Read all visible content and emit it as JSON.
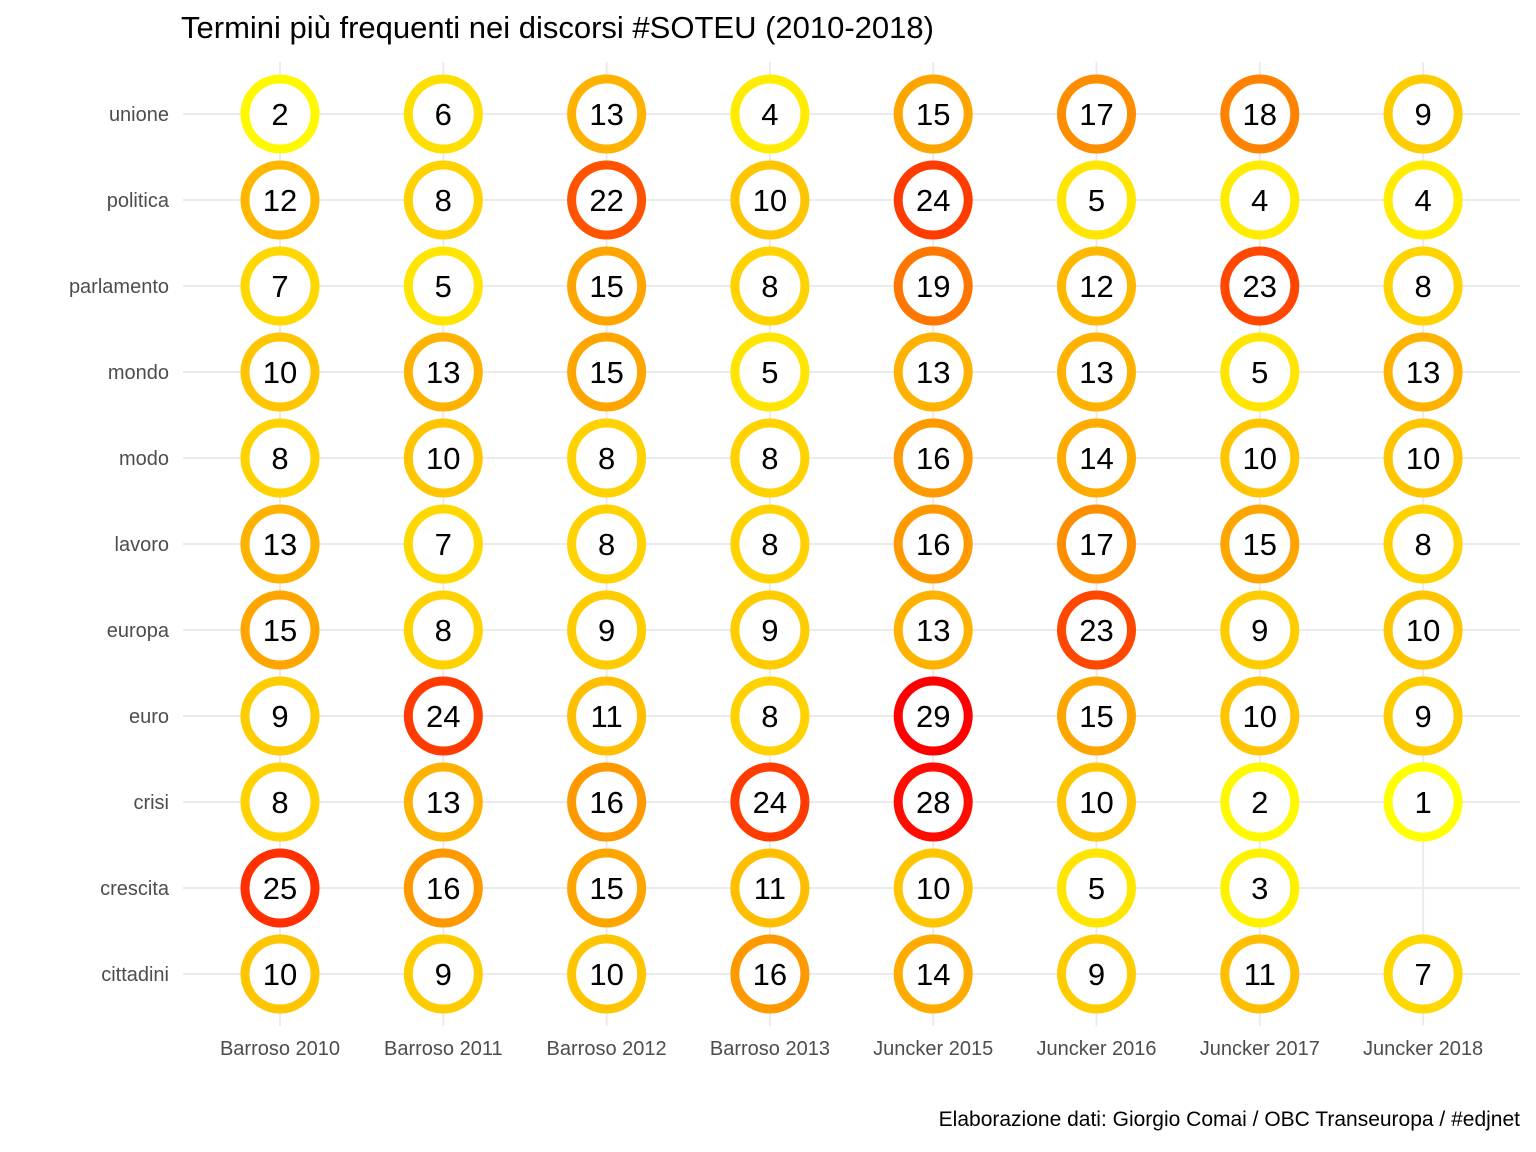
{
  "title": "Termini più frequenti nei discorsi #SOTEU (2010-2018)",
  "caption": "Elaborazione dati:  Giorgio Comai / OBC Transeuropa / #edjnet",
  "colors": {
    "low": "#FFFF00",
    "mid": "#FFA500",
    "high": "#FF0000",
    "grid": "#EBEBEB",
    "axis_text": "#4D4D4D"
  },
  "chart_data": {
    "type": "heatmap",
    "title": "Termini più frequenti nei discorsi #SOTEU (2010-2018)",
    "xlabel": "",
    "ylabel": "",
    "x_categories": [
      "Barroso 2010",
      "Barroso 2011",
      "Barroso 2012",
      "Barroso 2013",
      "Juncker 2015",
      "Juncker 2016",
      "Juncker 2017",
      "Juncker 2018"
    ],
    "y_categories": [
      "unione",
      "politica",
      "parlamento",
      "mondo",
      "modo",
      "lavoro",
      "europa",
      "euro",
      "crisi",
      "crescita",
      "cittadini"
    ],
    "values": [
      [
        2,
        6,
        13,
        4,
        15,
        17,
        18,
        9
      ],
      [
        12,
        8,
        22,
        10,
        24,
        5,
        4,
        4
      ],
      [
        7,
        5,
        15,
        8,
        19,
        12,
        23,
        8
      ],
      [
        10,
        13,
        15,
        5,
        13,
        13,
        5,
        13
      ],
      [
        8,
        10,
        8,
        8,
        16,
        14,
        10,
        10
      ],
      [
        13,
        7,
        8,
        8,
        16,
        17,
        15,
        8
      ],
      [
        15,
        8,
        9,
        9,
        13,
        23,
        9,
        10
      ],
      [
        9,
        24,
        11,
        8,
        29,
        15,
        10,
        9
      ],
      [
        8,
        13,
        16,
        24,
        28,
        10,
        2,
        1
      ],
      [
        25,
        16,
        15,
        11,
        10,
        5,
        3,
        null
      ],
      [
        10,
        9,
        10,
        16,
        14,
        9,
        11,
        7
      ]
    ],
    "color_scale": {
      "min": 1,
      "max": 29,
      "colors": [
        "#FFFF00",
        "#FFA500",
        "#FF0000"
      ]
    },
    "grid": true,
    "legend": "none"
  }
}
